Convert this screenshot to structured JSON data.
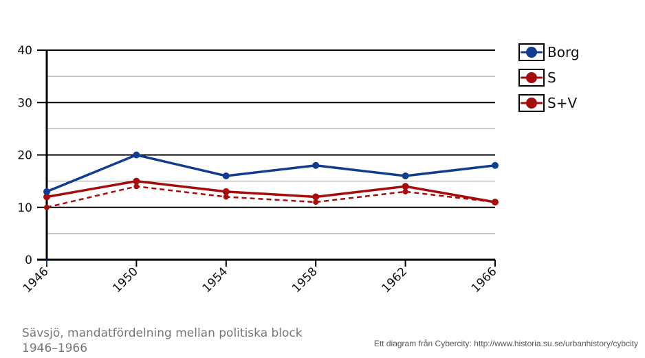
{
  "chart_data": {
    "type": "line",
    "categories": [
      "1946",
      "1950",
      "1954",
      "1958",
      "1962",
      "1966"
    ],
    "series": [
      {
        "name": "Borg",
        "values": [
          13,
          20,
          16,
          18,
          16,
          18
        ],
        "color": "#123d8f",
        "dashed": false
      },
      {
        "name": "S",
        "values": [
          10,
          14,
          12,
          11,
          13,
          11
        ],
        "color": "#a50d0d",
        "dashed": true
      },
      {
        "name": "S+V",
        "values": [
          12,
          15,
          13,
          12,
          14,
          11
        ],
        "color": "#a50d0d",
        "dashed": false
      }
    ],
    "ylim": [
      0,
      40
    ],
    "yticks": [
      "0",
      "10",
      "20",
      "30",
      "40"
    ],
    "grid": true,
    "legend": "right"
  },
  "caption": "Sävsjö, mandatfördelning mellan politiska block 1946–1966",
  "credit": "Ett diagram från Cybercity: http://www.historia.su.se/urbanhistory/cybcity"
}
